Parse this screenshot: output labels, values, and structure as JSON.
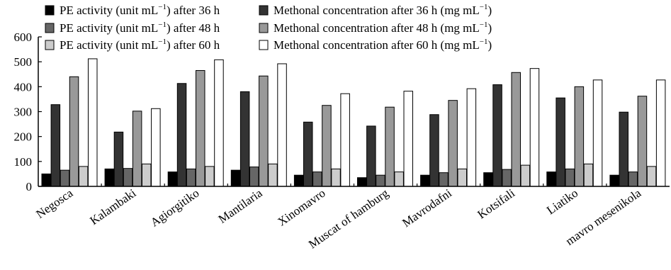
{
  "chart_data": {
    "type": "bar",
    "title": "",
    "xlabel": "",
    "ylabel": "",
    "ylim": [
      0,
      600
    ],
    "yticks": [
      0,
      100,
      200,
      300,
      400,
      500,
      600
    ],
    "grid": false,
    "legend_position": "top",
    "categories": [
      "Negosca",
      "Kalambaki",
      "Agiorgitiko",
      "Mantilaria",
      "Xinomavro",
      "Muscat of hamburg",
      "Mavrodafni",
      "Kotsifali",
      "Liatiko",
      "mavro mesenikola"
    ],
    "series": [
      {
        "name": "PE activity (unit mL⁻¹) after 36 h",
        "name_prefix": "PE activity (unit mL",
        "name_suffix": ") after 36 h",
        "color": "#000000",
        "values": [
          50,
          70,
          58,
          65,
          45,
          35,
          45,
          55,
          58,
          45
        ]
      },
      {
        "name": "Methonal concentration after 36 h (mg mL⁻¹)",
        "name_prefix": "Methonal concentration after 36 h (mg mL",
        "name_suffix": ")",
        "color": "#333333",
        "values": [
          328,
          218,
          413,
          380,
          258,
          242,
          288,
          408,
          355,
          298
        ]
      },
      {
        "name": "PE activity (unit mL⁻¹) after 48 h",
        "name_prefix": "PE activity (unit mL",
        "name_suffix": ") after 48 h",
        "color": "#666666",
        "values": [
          65,
          72,
          70,
          78,
          58,
          45,
          55,
          68,
          70,
          58
        ]
      },
      {
        "name": "Methonal concentration after 48 h (mg mL⁻¹)",
        "name_prefix": "Methonal concentration after 48 h (mg mL",
        "name_suffix": ")",
        "color": "#999999",
        "values": [
          440,
          302,
          465,
          443,
          325,
          318,
          345,
          457,
          400,
          362
        ]
      },
      {
        "name": "PE activity (unit mL⁻¹) after 60 h",
        "name_prefix": "PE activity (unit mL",
        "name_suffix": ") after 60 h",
        "color": "#cccccc",
        "values": [
          80,
          90,
          80,
          90,
          70,
          58,
          70,
          85,
          90,
          80
        ]
      },
      {
        "name": "Methonal concentration after 60 h (mg mL⁻¹)",
        "name_prefix": "Methonal concentration after 60 h (mg mL",
        "name_suffix": ")",
        "color": "#ffffff",
        "values": [
          512,
          312,
          508,
          492,
          372,
          382,
          392,
          473,
          427,
          427
        ]
      }
    ]
  }
}
